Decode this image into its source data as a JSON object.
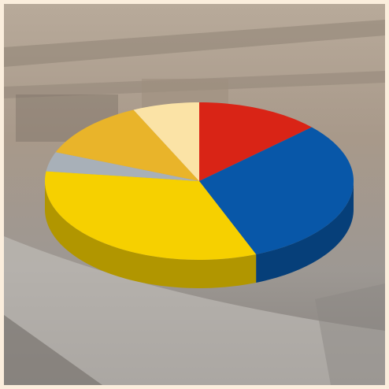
{
  "chart_data": {
    "type": "pie",
    "three_d": true,
    "values": [
      13,
      31,
      33,
      4,
      12,
      7
    ],
    "colors": [
      "#d92416",
      "#0857a8",
      "#f6d000",
      "#a8b0b8",
      "#e9b42a",
      "#fbe3a6"
    ]
  }
}
